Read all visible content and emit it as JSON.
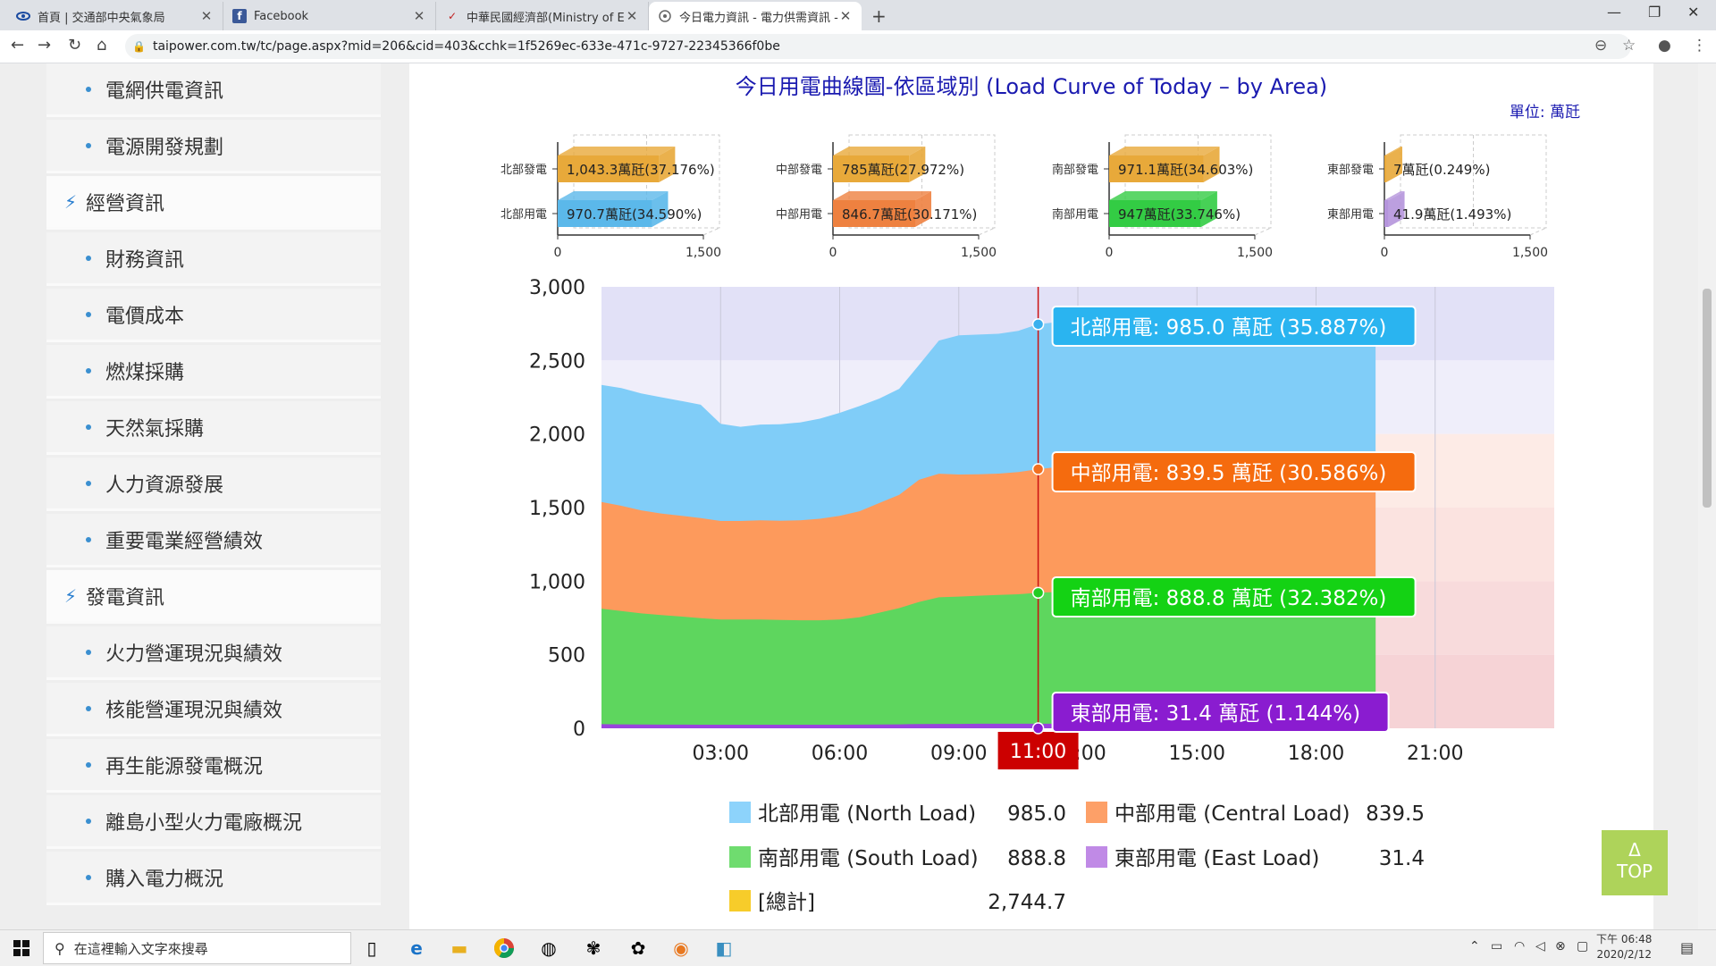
{
  "browser": {
    "tabs": [
      {
        "title": "首頁 | 交通部中央氣象局",
        "icon": "eye-icon"
      },
      {
        "title": "Facebook",
        "icon": "facebook-icon"
      },
      {
        "title": "中華民國經濟部(Ministry of Eco",
        "icon": "moea-icon"
      },
      {
        "title": "今日電力資訊 - 電力供需資訊 - 台",
        "icon": "taipower-icon"
      }
    ],
    "url": "taipower.com.tw/tc/page.aspx?mid=206&cid=403&cchk=1f5269ec-633e-471c-9727-22345366f0be"
  },
  "sidebar": {
    "items": [
      {
        "label": "電網供電資訊",
        "type": "sub"
      },
      {
        "label": "電源開發規劃",
        "type": "sub"
      },
      {
        "label": "經營資訊",
        "type": "cat"
      },
      {
        "label": "財務資訊",
        "type": "sub"
      },
      {
        "label": "電價成本",
        "type": "sub"
      },
      {
        "label": "燃煤採購",
        "type": "sub"
      },
      {
        "label": "天然氣採購",
        "type": "sub"
      },
      {
        "label": "人力資源發展",
        "type": "sub"
      },
      {
        "label": "重要電業經營績效",
        "type": "sub"
      },
      {
        "label": "發電資訊",
        "type": "cat"
      },
      {
        "label": "火力營運現況與績效",
        "type": "sub"
      },
      {
        "label": "核能營運現況與績效",
        "type": "sub"
      },
      {
        "label": "再生能源發電概況",
        "type": "sub"
      },
      {
        "label": "離島小型火力電廠概況",
        "type": "sub"
      },
      {
        "label": "購入電力概況",
        "type": "sub"
      }
    ]
  },
  "chart": {
    "title": "今日用電曲線圖-依區域別 (Load Curve of Today – by Area)",
    "unit": "單位: 萬瓩",
    "cursor_time": "11:00",
    "tooltips": [
      {
        "text": "北部用電: 985.0 萬瓩 (35.887%)",
        "color": "#2ab4f0"
      },
      {
        "text": "中部用電: 839.5 萬瓩 (30.586%)",
        "color": "#f56b0e"
      },
      {
        "text": "南部用電: 888.8 萬瓩 (32.382%)",
        "color": "#14d214"
      },
      {
        "text": "東部用電: 31.4 萬瓩 (1.144%)",
        "color": "#8a1cd0"
      }
    ],
    "legend": [
      {
        "label": "北部用電 (North Load)",
        "value": "985.0",
        "color": "#8dd3fb"
      },
      {
        "label": "中部用電 (Central Load)",
        "value": "839.5",
        "color": "#fda068"
      },
      {
        "label": "南部用電 (South Load)",
        "value": "888.8",
        "color": "#6fdc6f"
      },
      {
        "label": "東部用電 (East Load)",
        "value": "31.4",
        "color": "#c08ae6"
      },
      {
        "label": "[總計]",
        "value": "2,744.7",
        "color": "#f7cc2a"
      }
    ]
  },
  "chart_data": [
    {
      "type": "bar",
      "region": "北部",
      "categories": [
        "北部發電",
        "北部用電"
      ],
      "values": [
        1043.3,
        970.7
      ],
      "labels": [
        "1,043.3萬瓩(37.176%)",
        "970.7萬瓩(34.590%)"
      ],
      "colors": [
        "#e8a93a",
        "#5bb8ea"
      ],
      "xlim": [
        0,
        1500
      ],
      "ticks": [
        "0",
        "1,500"
      ]
    },
    {
      "type": "bar",
      "region": "中部",
      "categories": [
        "中部發電",
        "中部用電"
      ],
      "values": [
        785,
        846.7
      ],
      "labels": [
        "785萬瓩(27.972%)",
        "846.7萬瓩(30.171%)"
      ],
      "colors": [
        "#e8a93a",
        "#ee8140"
      ],
      "xlim": [
        0,
        1500
      ],
      "ticks": [
        "0",
        "1,500"
      ]
    },
    {
      "type": "bar",
      "region": "南部",
      "categories": [
        "南部發電",
        "南部用電"
      ],
      "values": [
        971.1,
        947
      ],
      "labels": [
        "971.1萬瓩(34.603%)",
        "947萬瓩(33.746%)"
      ],
      "colors": [
        "#e8a93a",
        "#33cc44"
      ],
      "xlim": [
        0,
        1500
      ],
      "ticks": [
        "0",
        "1,500"
      ]
    },
    {
      "type": "bar",
      "region": "東部",
      "categories": [
        "東部發電",
        "東部用電"
      ],
      "values": [
        7,
        41.9
      ],
      "labels": [
        "7萬瓩(0.249%)",
        "41.9萬瓩(1.493%)"
      ],
      "colors": [
        "#e8a93a",
        "#b595dc"
      ],
      "xlim": [
        0,
        1500
      ],
      "ticks": [
        "0",
        "1,500"
      ]
    },
    {
      "type": "area",
      "stacked": true,
      "x": [
        "00:00",
        "00:30",
        "01:00",
        "01:30",
        "02:00",
        "02:30",
        "03:00",
        "03:30",
        "04:00",
        "04:30",
        "05:00",
        "05:30",
        "06:00",
        "06:30",
        "07:00",
        "07:30",
        "08:00",
        "08:30",
        "09:00",
        "09:30",
        "10:00",
        "10:30",
        "11:00",
        "11:30",
        "12:00",
        "12:30",
        "13:00",
        "13:30",
        "14:00",
        "14:30",
        "15:00",
        "15:30",
        "16:00",
        "16:30",
        "17:00",
        "17:30",
        "18:00",
        "18:30",
        "19:00",
        "19:30"
      ],
      "series": [
        {
          "name": "東部用電",
          "values": [
            28,
            27,
            26,
            25,
            25,
            24,
            24,
            24,
            24,
            24,
            24,
            24,
            24,
            25,
            26,
            27,
            29,
            30,
            30,
            31,
            31,
            31,
            31,
            31,
            31,
            30,
            31,
            31,
            31,
            31,
            31,
            31,
            31,
            30,
            30,
            30,
            31,
            31,
            31,
            31
          ]
        },
        {
          "name": "南部用電",
          "values": [
            785,
            770,
            755,
            745,
            735,
            725,
            715,
            715,
            715,
            712,
            710,
            710,
            715,
            730,
            760,
            790,
            830,
            860,
            865,
            870,
            875,
            880,
            890,
            895,
            885,
            880,
            885,
            890,
            892,
            895,
            895,
            890,
            885,
            880,
            878,
            875,
            870,
            870,
            868,
            865
          ]
        },
        {
          "name": "中部用電",
          "values": [
            725,
            715,
            700,
            690,
            685,
            680,
            670,
            670,
            675,
            675,
            680,
            690,
            705,
            720,
            745,
            770,
            830,
            840,
            830,
            825,
            825,
            830,
            840,
            850,
            835,
            830,
            840,
            845,
            850,
            850,
            850,
            845,
            840,
            835,
            830,
            830,
            830,
            830,
            828,
            825
          ]
        },
        {
          "name": "北部用電",
          "values": [
            795,
            800,
            795,
            790,
            780,
            770,
            660,
            640,
            650,
            655,
            665,
            680,
            700,
            715,
            710,
            720,
            780,
            905,
            945,
            950,
            950,
            960,
            985,
            985,
            935,
            930,
            945,
            950,
            955,
            950,
            950,
            945,
            940,
            935,
            930,
            925,
            920,
            915,
            910,
            905
          ]
        }
      ],
      "cursor": "11:00",
      "ylim": [
        0,
        3000
      ],
      "yticks": [
        "0",
        "500",
        "1,000",
        "1,500",
        "2,000",
        "2,500",
        "3,000"
      ],
      "xticks": [
        "03:00",
        "06:00",
        "09:00",
        "12:00",
        "15:00",
        "18:00",
        "21:00"
      ]
    }
  ],
  "taskbar": {
    "search_placeholder": "在這裡輸入文字來搜尋",
    "time": "下午 06:48",
    "date": "2020/2/12"
  },
  "top_button": {
    "arrow": "Δ",
    "label": "TOP"
  }
}
